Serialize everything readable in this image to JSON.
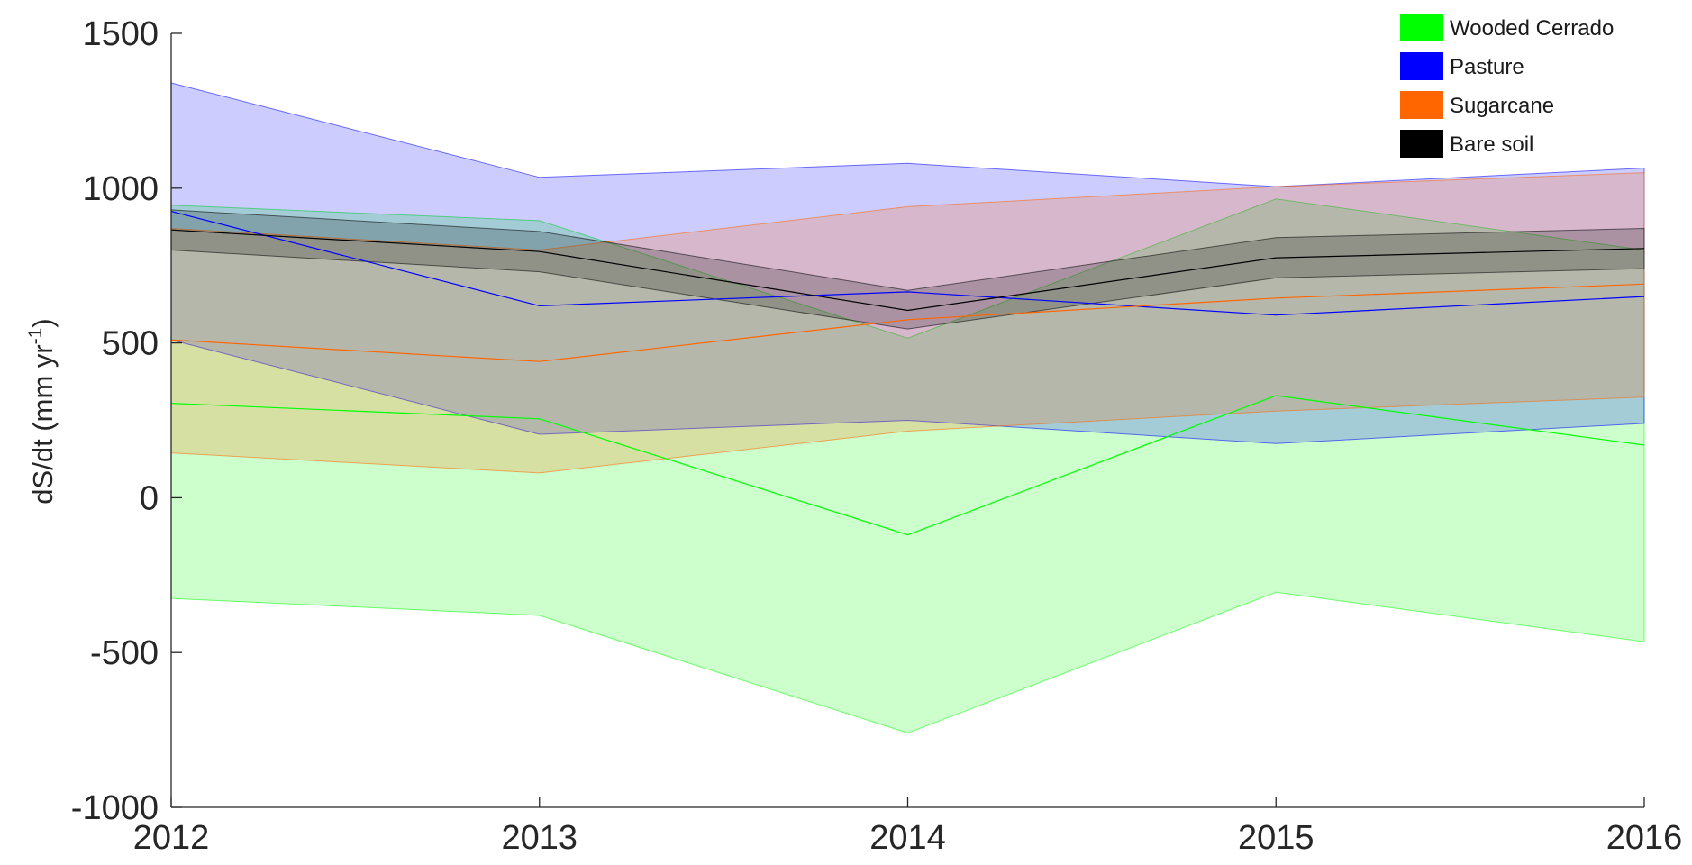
{
  "chart_data": {
    "type": "area",
    "x": [
      2012,
      2013,
      2014,
      2015,
      2016
    ],
    "xlim": [
      2012,
      2016
    ],
    "ylim": [
      -1000,
      1500
    ],
    "xticks": [
      "2012",
      "2013",
      "2014",
      "2015",
      "2016"
    ],
    "yticks": [
      "-1000",
      "-500",
      "0",
      "500",
      "1000",
      "1500"
    ],
    "ylabel": {
      "main": "dS/dt (mm yr",
      "sup": "-1",
      "close": ")"
    },
    "legend_position": "top-right",
    "grid": false,
    "series": [
      {
        "name": "Wooded Cerrado",
        "color": "#00ff00",
        "mean": [
          305,
          255,
          -120,
          330,
          170
        ],
        "lower": [
          -325,
          -380,
          -760,
          -305,
          -465
        ],
        "upper": [
          945,
          895,
          515,
          965,
          800
        ]
      },
      {
        "name": "Pasture",
        "color": "#0000ff",
        "mean": [
          925,
          620,
          665,
          590,
          650
        ],
        "lower": [
          510,
          205,
          250,
          175,
          240
        ],
        "upper": [
          1340,
          1035,
          1080,
          1005,
          1065
        ]
      },
      {
        "name": "Sugarcane",
        "color": "#ff6600",
        "mean": [
          510,
          440,
          575,
          645,
          690
        ],
        "lower": [
          145,
          80,
          215,
          280,
          325
        ],
        "upper": [
          870,
          800,
          940,
          1005,
          1050
        ]
      },
      {
        "name": "Bare soil",
        "color": "#000000",
        "mean": [
          865,
          795,
          605,
          775,
          805
        ],
        "lower": [
          800,
          730,
          545,
          710,
          740
        ],
        "upper": [
          930,
          860,
          670,
          840,
          870
        ]
      }
    ]
  }
}
